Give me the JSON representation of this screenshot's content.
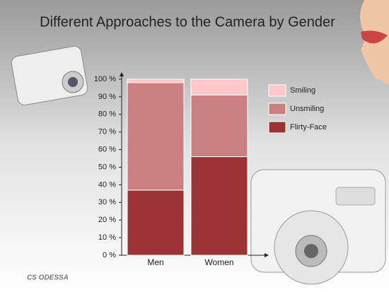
{
  "chart_data": {
    "type": "stacked_bar",
    "title": "Different Approaches to the Camera by Gender",
    "categories": [
      "Men",
      "Women"
    ],
    "series": [
      {
        "name": "Flirty-Face",
        "color": "#9b3234",
        "values": [
          37,
          56
        ]
      },
      {
        "name": "Unsmiling",
        "color": "#c98080",
        "values": [
          61,
          35
        ]
      },
      {
        "name": "Smiling",
        "color": "#ffc8c8",
        "values": [
          2,
          9
        ]
      }
    ],
    "ylim": [
      0,
      100
    ],
    "yticks": [
      {
        "value": 0,
        "label": "0 %"
      },
      {
        "value": 10,
        "label": "10 %"
      },
      {
        "value": 20,
        "label": "20 %"
      },
      {
        "value": 30,
        "label": "30 %"
      },
      {
        "value": 40,
        "label": "40 %"
      },
      {
        "value": 50,
        "label": "50 %"
      },
      {
        "value": 60,
        "label": "60 %"
      },
      {
        "value": 70,
        "label": "70 %"
      },
      {
        "value": 80,
        "label": "80 %"
      },
      {
        "value": 90,
        "label": "90 %"
      },
      {
        "value": 100,
        "label": "100 %"
      }
    ],
    "logo": "CS ODESSA"
  }
}
